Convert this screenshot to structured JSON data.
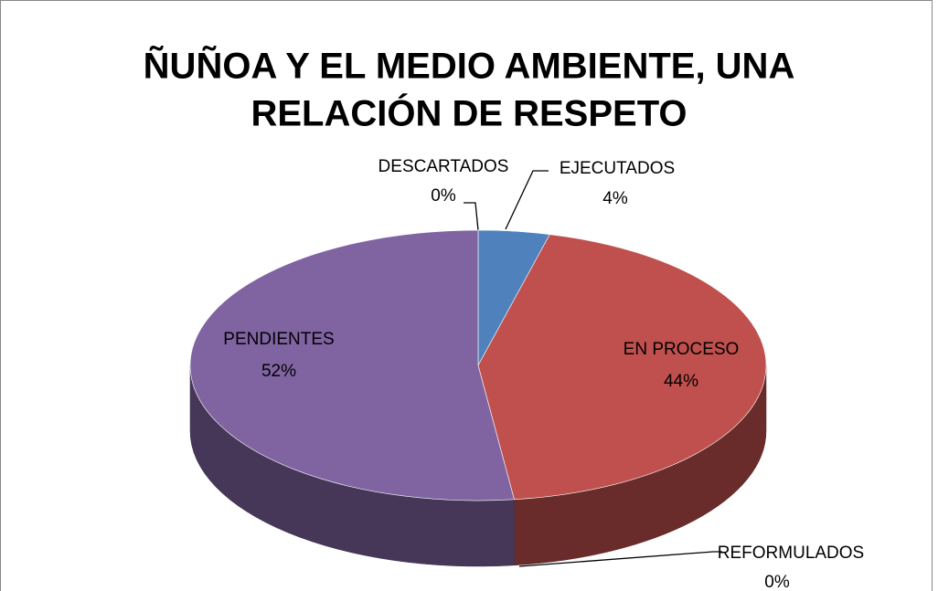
{
  "chart_data": {
    "type": "pie",
    "title": "ÑUÑOA Y EL MEDIO AMBIENTE, UNA RELACIÓN DE RESPETO",
    "title_lines": [
      "ÑUÑOA Y EL MEDIO AMBIENTE, UNA",
      "RELACIÓN DE RESPETO"
    ],
    "categories": [
      "EJECUTADOS",
      "EN PROCESO",
      "REFORMULADOS",
      "PENDIENTES",
      "DESCARTADOS"
    ],
    "values": [
      4,
      44,
      0,
      52,
      0
    ],
    "value_labels": [
      "4%",
      "44%",
      "0%",
      "52%",
      "0%"
    ],
    "colors": [
      "#4f81bd",
      "#c0504d",
      "#9bbb59",
      "#8064a2",
      "#4bacc6"
    ]
  }
}
